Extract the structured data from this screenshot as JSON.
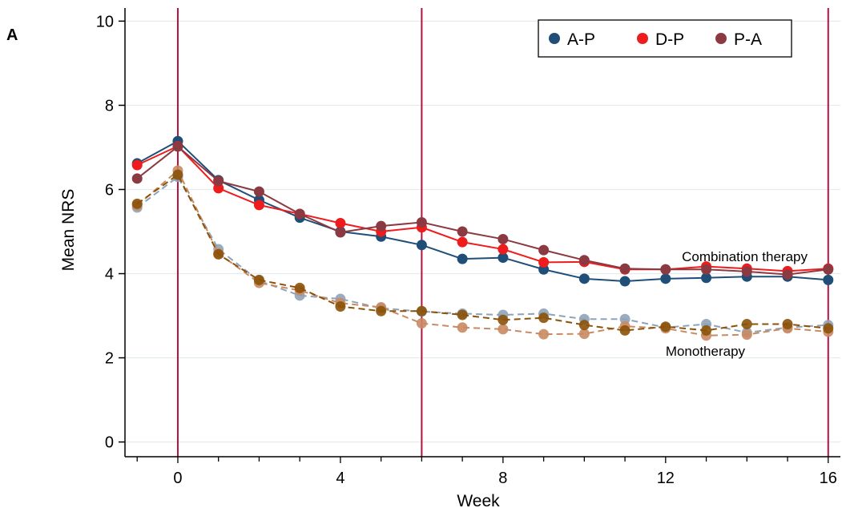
{
  "chart_data": {
    "type": "line",
    "panel_label": "A",
    "xlabel": "Week",
    "ylabel": "Mean NRS",
    "xlim": [
      -1.3,
      16.3
    ],
    "ylim": [
      -0.35,
      10.35
    ],
    "xticks": [
      0,
      4,
      8,
      12,
      16
    ],
    "yticks": [
      0,
      2,
      4,
      6,
      8,
      10
    ],
    "grid": "horizontal",
    "vlines": [
      0,
      6,
      16
    ],
    "legend": {
      "position": "top-right",
      "entries": [
        "A-P",
        "D-P",
        "P-A"
      ]
    },
    "annotations": [
      {
        "text": "Combination therapy",
        "x": 12.4,
        "y": 4.3
      },
      {
        "text": "Monotherapy",
        "x": 12.0,
        "y": 2.05
      }
    ],
    "colors": {
      "A-P": "#1f4e79",
      "D-P": "#ee1c1c",
      "P-A": "#8c3a42",
      "mono_A-P": "#8fa3b8",
      "mono_D-P": "#c98a63",
      "mono_P-A": "#8b5209",
      "vline": "#b3123f"
    },
    "x": [
      -1,
      0,
      1,
      2,
      3,
      4,
      5,
      6,
      7,
      8,
      9,
      10,
      11,
      12,
      13,
      14,
      15,
      16
    ],
    "series": [
      {
        "name": "A-P",
        "group": "Combination therapy",
        "style": "solid",
        "values": [
          6.62,
          7.15,
          6.22,
          5.75,
          5.33,
          5.0,
          4.88,
          4.68,
          4.35,
          4.38,
          4.1,
          3.88,
          3.82,
          3.88,
          3.9,
          3.93,
          3.93,
          3.85
        ]
      },
      {
        "name": "D-P",
        "group": "Combination therapy",
        "style": "solid",
        "values": [
          6.58,
          7.03,
          6.03,
          5.63,
          5.42,
          5.2,
          5.0,
          5.1,
          4.75,
          4.58,
          4.27,
          4.28,
          4.1,
          4.1,
          4.17,
          4.12,
          4.06,
          4.12
        ]
      },
      {
        "name": "P-A",
        "group": "Combination therapy",
        "style": "solid",
        "values": [
          6.26,
          7.02,
          6.2,
          5.95,
          5.42,
          4.98,
          5.13,
          5.22,
          5.0,
          4.82,
          4.56,
          4.32,
          4.12,
          4.1,
          4.1,
          4.05,
          3.98,
          4.1
        ]
      },
      {
        "name": "A-P",
        "group": "Monotherapy",
        "style": "dashed",
        "values": [
          5.57,
          6.3,
          4.58,
          3.83,
          3.48,
          3.4,
          3.18,
          3.1,
          3.05,
          3.02,
          3.05,
          2.92,
          2.92,
          2.72,
          2.8,
          2.6,
          2.72,
          2.78
        ]
      },
      {
        "name": "D-P",
        "group": "Monotherapy",
        "style": "dashed",
        "values": [
          5.62,
          6.45,
          4.48,
          3.78,
          3.6,
          3.3,
          3.2,
          2.82,
          2.72,
          2.68,
          2.56,
          2.57,
          2.75,
          2.7,
          2.53,
          2.55,
          2.7,
          2.62
        ]
      },
      {
        "name": "P-A",
        "group": "Monotherapy",
        "style": "dashed",
        "values": [
          5.66,
          6.35,
          4.46,
          3.85,
          3.66,
          3.22,
          3.11,
          3.11,
          3.02,
          2.9,
          2.95,
          2.78,
          2.65,
          2.74,
          2.65,
          2.8,
          2.8,
          2.7
        ]
      }
    ]
  }
}
